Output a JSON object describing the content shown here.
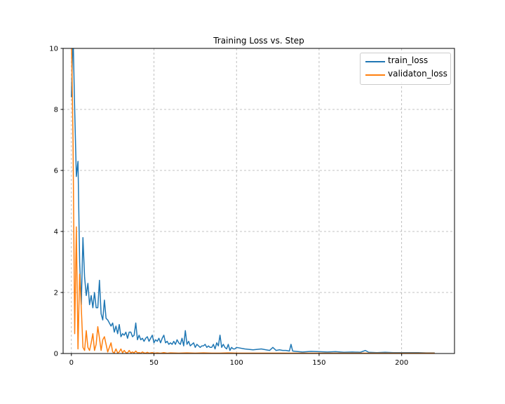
{
  "chart_data": {
    "type": "line",
    "title": "Training Loss vs. Step",
    "xlabel": "",
    "ylabel": "",
    "xlim": [
      -5,
      232
    ],
    "ylim": [
      0,
      10
    ],
    "xticks": [
      "0",
      "50",
      "100",
      "150",
      "200"
    ],
    "yticks": [
      "0",
      "2",
      "4",
      "6",
      "8",
      "10"
    ],
    "grid": true,
    "legend_position": "top-right",
    "series": [
      {
        "name": "train_loss",
        "color": "#1f77b4",
        "x": [
          0,
          1,
          2,
          3,
          4,
          5,
          6,
          7,
          8,
          9,
          10,
          11,
          12,
          13,
          14,
          15,
          16,
          17,
          18,
          19,
          20,
          21,
          22,
          23,
          24,
          25,
          26,
          27,
          28,
          29,
          30,
          31,
          32,
          33,
          34,
          35,
          36,
          37,
          38,
          39,
          40,
          41,
          42,
          43,
          44,
          45,
          46,
          47,
          48,
          49,
          50,
          51,
          52,
          53,
          54,
          55,
          56,
          57,
          58,
          59,
          60,
          61,
          62,
          63,
          64,
          65,
          66,
          67,
          68,
          69,
          70,
          71,
          72,
          73,
          74,
          75,
          76,
          77,
          78,
          79,
          80,
          81,
          82,
          83,
          84,
          85,
          86,
          87,
          88,
          89,
          90,
          91,
          92,
          93,
          94,
          95,
          96,
          97,
          98,
          99,
          100,
          105,
          110,
          115,
          120,
          122,
          124,
          126,
          128,
          130,
          132,
          133,
          134,
          136,
          140,
          145,
          150,
          155,
          160,
          165,
          170,
          175,
          178,
          180,
          185,
          190,
          195,
          200,
          205,
          210,
          215,
          220
        ],
        "y": [
          8.4,
          10.5,
          8.0,
          5.8,
          6.3,
          3.0,
          1.6,
          3.8,
          2.5,
          1.9,
          2.3,
          1.6,
          1.9,
          1.5,
          2.0,
          1.5,
          1.5,
          2.4,
          1.3,
          1.1,
          1.75,
          1.15,
          1.1,
          1.0,
          0.9,
          1.0,
          0.7,
          0.9,
          0.65,
          0.95,
          0.55,
          0.65,
          0.6,
          0.7,
          0.5,
          0.7,
          0.7,
          0.55,
          0.6,
          1.0,
          0.45,
          0.6,
          0.45,
          0.5,
          0.4,
          0.5,
          0.55,
          0.4,
          0.5,
          0.6,
          0.35,
          0.45,
          0.4,
          0.5,
          0.35,
          0.5,
          0.6,
          0.35,
          0.4,
          0.3,
          0.35,
          0.3,
          0.4,
          0.3,
          0.45,
          0.35,
          0.3,
          0.5,
          0.25,
          0.75,
          0.3,
          0.4,
          0.25,
          0.3,
          0.35,
          0.2,
          0.3,
          0.25,
          0.2,
          0.25,
          0.25,
          0.3,
          0.2,
          0.25,
          0.2,
          0.2,
          0.3,
          0.15,
          0.35,
          0.25,
          0.6,
          0.2,
          0.3,
          0.2,
          0.15,
          0.3,
          0.1,
          0.2,
          0.15,
          0.15,
          0.2,
          0.15,
          0.12,
          0.15,
          0.1,
          0.2,
          0.1,
          0.12,
          0.1,
          0.1,
          0.08,
          0.3,
          0.08,
          0.07,
          0.05,
          0.07,
          0.06,
          0.05,
          0.06,
          0.04,
          0.05,
          0.04,
          0.1,
          0.04,
          0.03,
          0.04,
          0.03,
          0.03,
          0.03,
          0.03,
          0.02,
          0.02
        ]
      },
      {
        "name": "validaton_loss",
        "color": "#ff7f0e",
        "x": [
          0,
          1,
          2,
          3,
          4,
          5,
          6,
          7,
          8,
          9,
          10,
          11,
          12,
          13,
          14,
          15,
          16,
          17,
          18,
          19,
          20,
          21,
          22,
          23,
          24,
          25,
          26,
          27,
          28,
          29,
          30,
          31,
          32,
          33,
          34,
          35,
          36,
          37,
          38,
          39,
          40,
          41,
          42,
          43,
          44,
          45,
          46,
          47,
          48,
          49,
          50,
          52,
          54,
          56,
          58,
          60,
          65,
          70,
          75,
          80,
          85,
          90,
          95,
          100,
          105,
          110,
          115,
          120,
          125,
          130,
          135,
          140,
          145,
          150,
          155,
          160,
          165,
          170,
          175,
          180,
          185,
          190,
          195,
          200,
          205,
          210,
          215,
          220
        ],
        "y": [
          10.5,
          7.0,
          0.65,
          4.15,
          0.15,
          2.6,
          1.5,
          0.2,
          0.1,
          0.75,
          0.2,
          0.1,
          0.35,
          0.65,
          0.1,
          0.3,
          0.88,
          0.5,
          0.1,
          0.45,
          0.55,
          0.3,
          0.05,
          0.2,
          0.35,
          0.05,
          0.02,
          0.15,
          0.02,
          0.05,
          0.15,
          0.02,
          0.1,
          0.03,
          0.02,
          0.1,
          0.02,
          0.05,
          0.02,
          0.08,
          0.02,
          0.03,
          0.01,
          0.05,
          0.02,
          0.01,
          0.04,
          0.01,
          0.02,
          0.03,
          0.01,
          0.02,
          0.01,
          0.03,
          0.01,
          0.02,
          0.01,
          0.02,
          0.01,
          0.02,
          0.01,
          0.01,
          0.02,
          0.01,
          0.01,
          0.01,
          0.01,
          0.01,
          0.01,
          0.01,
          0.01,
          0.01,
          0.01,
          0.01,
          0.01,
          0.01,
          0.01,
          0.01,
          0.01,
          0.01,
          0.01,
          0.01,
          0.01,
          0.01,
          0.01,
          0.01,
          0.01,
          0.01
        ]
      }
    ]
  }
}
